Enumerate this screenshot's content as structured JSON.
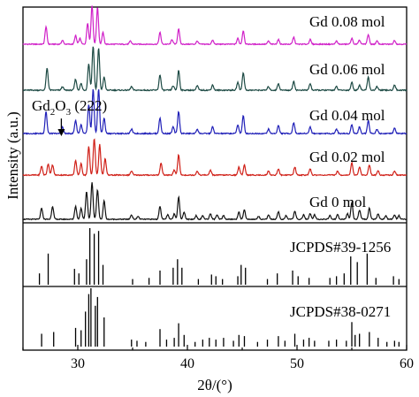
{
  "chart_data": {
    "type": "line",
    "xlabel": "2θ/(°)",
    "ylabel": "Intensity (a.u.)",
    "xlim": [
      25,
      60
    ],
    "xticks": [
      30,
      40,
      50,
      60
    ],
    "xtick_labels": [
      "30",
      "40",
      "50",
      "60"
    ],
    "grid": false,
    "annotation": {
      "text_main": "Gd",
      "text_sub": "2",
      "text_main2": "O",
      "text_sub2": "3",
      "text_tail": " (222)",
      "x": 28.5
    },
    "series": [
      {
        "name": "Gd 0.08 mol",
        "color": "#d020c8",
        "peaks": [
          [
            27.1,
            0.45
          ],
          [
            28.6,
            0.1
          ],
          [
            29.8,
            0.22
          ],
          [
            30.2,
            0.15
          ],
          [
            30.9,
            0.55
          ],
          [
            31.3,
            1.0
          ],
          [
            31.8,
            0.95
          ],
          [
            32.3,
            0.3
          ],
          [
            34.8,
            0.08
          ],
          [
            37.5,
            0.3
          ],
          [
            38.6,
            0.12
          ],
          [
            39.2,
            0.4
          ],
          [
            40.9,
            0.08
          ],
          [
            42.3,
            0.1
          ],
          [
            44.6,
            0.15
          ],
          [
            45.1,
            0.35
          ],
          [
            47.4,
            0.08
          ],
          [
            48.3,
            0.12
          ],
          [
            49.7,
            0.18
          ],
          [
            51.2,
            0.12
          ],
          [
            53.6,
            0.08
          ],
          [
            55.0,
            0.15
          ],
          [
            55.7,
            0.1
          ],
          [
            56.5,
            0.25
          ],
          [
            57.3,
            0.08
          ],
          [
            58.9,
            0.1
          ]
        ]
      },
      {
        "name": "Gd 0.06 mol",
        "color": "#1d4a44",
        "peaks": [
          [
            27.2,
            0.5
          ],
          [
            28.6,
            0.08
          ],
          [
            29.8,
            0.25
          ],
          [
            30.3,
            0.15
          ],
          [
            31.0,
            0.6
          ],
          [
            31.4,
            1.0
          ],
          [
            31.9,
            0.95
          ],
          [
            32.4,
            0.3
          ],
          [
            34.9,
            0.08
          ],
          [
            37.5,
            0.35
          ],
          [
            38.7,
            0.1
          ],
          [
            39.2,
            0.45
          ],
          [
            40.9,
            0.1
          ],
          [
            42.3,
            0.12
          ],
          [
            44.6,
            0.18
          ],
          [
            45.1,
            0.4
          ],
          [
            47.4,
            0.08
          ],
          [
            48.3,
            0.15
          ],
          [
            49.7,
            0.2
          ],
          [
            51.2,
            0.15
          ],
          [
            53.6,
            0.08
          ],
          [
            55.0,
            0.18
          ],
          [
            55.7,
            0.12
          ],
          [
            56.5,
            0.3
          ],
          [
            57.3,
            0.08
          ],
          [
            58.9,
            0.12
          ]
        ]
      },
      {
        "name": "Gd 0.04 mol",
        "color": "#2020b8",
        "peaks": [
          [
            27.1,
            0.5
          ],
          [
            28.6,
            0.15
          ],
          [
            29.8,
            0.3
          ],
          [
            30.3,
            0.2
          ],
          [
            31.0,
            0.65
          ],
          [
            31.4,
            1.0
          ],
          [
            31.9,
            1.0
          ],
          [
            32.4,
            0.35
          ],
          [
            34.9,
            0.1
          ],
          [
            37.5,
            0.35
          ],
          [
            38.7,
            0.15
          ],
          [
            39.2,
            0.5
          ],
          [
            40.9,
            0.1
          ],
          [
            42.3,
            0.15
          ],
          [
            44.6,
            0.2
          ],
          [
            45.1,
            0.4
          ],
          [
            47.4,
            0.1
          ],
          [
            48.3,
            0.18
          ],
          [
            49.7,
            0.25
          ],
          [
            51.2,
            0.15
          ],
          [
            53.6,
            0.1
          ],
          [
            55.0,
            0.2
          ],
          [
            55.7,
            0.15
          ],
          [
            56.5,
            0.3
          ],
          [
            57.3,
            0.1
          ],
          [
            58.9,
            0.12
          ]
        ]
      },
      {
        "name": "Gd 0.02 mol",
        "color": "#d02018",
        "peaks": [
          [
            26.7,
            0.22
          ],
          [
            27.3,
            0.28
          ],
          [
            27.7,
            0.25
          ],
          [
            29.8,
            0.35
          ],
          [
            30.3,
            0.28
          ],
          [
            31.0,
            0.7
          ],
          [
            31.5,
            0.9
          ],
          [
            32.0,
            0.75
          ],
          [
            32.5,
            0.4
          ],
          [
            34.9,
            0.1
          ],
          [
            37.6,
            0.3
          ],
          [
            38.8,
            0.12
          ],
          [
            39.2,
            0.5
          ],
          [
            40.9,
            0.1
          ],
          [
            42.1,
            0.12
          ],
          [
            44.7,
            0.2
          ],
          [
            45.2,
            0.25
          ],
          [
            47.4,
            0.1
          ],
          [
            48.3,
            0.15
          ],
          [
            49.8,
            0.2
          ],
          [
            51.2,
            0.15
          ],
          [
            53.7,
            0.1
          ],
          [
            55.0,
            0.3
          ],
          [
            55.7,
            0.2
          ],
          [
            56.6,
            0.25
          ],
          [
            57.4,
            0.1
          ],
          [
            58.9,
            0.1
          ]
        ]
      },
      {
        "name": "Gd 0 mol",
        "color": "#111111",
        "peaks": [
          [
            26.7,
            0.3
          ],
          [
            27.7,
            0.35
          ],
          [
            29.8,
            0.35
          ],
          [
            30.3,
            0.3
          ],
          [
            30.8,
            0.75
          ],
          [
            31.3,
            1.0
          ],
          [
            31.8,
            0.8
          ],
          [
            32.4,
            0.5
          ],
          [
            34.9,
            0.12
          ],
          [
            35.5,
            0.08
          ],
          [
            37.5,
            0.35
          ],
          [
            38.2,
            0.12
          ],
          [
            38.8,
            0.15
          ],
          [
            39.2,
            0.6
          ],
          [
            39.7,
            0.2
          ],
          [
            40.8,
            0.1
          ],
          [
            41.4,
            0.1
          ],
          [
            42.1,
            0.15
          ],
          [
            42.7,
            0.12
          ],
          [
            43.3,
            0.1
          ],
          [
            44.7,
            0.2
          ],
          [
            45.2,
            0.25
          ],
          [
            46.5,
            0.08
          ],
          [
            47.4,
            0.12
          ],
          [
            48.3,
            0.2
          ],
          [
            49.0,
            0.1
          ],
          [
            49.8,
            0.22
          ],
          [
            50.6,
            0.12
          ],
          [
            51.2,
            0.15
          ],
          [
            51.6,
            0.12
          ],
          [
            53.0,
            0.1
          ],
          [
            53.7,
            0.12
          ],
          [
            54.6,
            0.15
          ],
          [
            55.0,
            0.45
          ],
          [
            55.7,
            0.25
          ],
          [
            56.6,
            0.3
          ],
          [
            57.4,
            0.15
          ],
          [
            58.1,
            0.1
          ],
          [
            58.9,
            0.12
          ],
          [
            59.3,
            0.1
          ]
        ]
      }
    ],
    "references": [
      {
        "name": "JCPDS#39-1256",
        "color": "#000000",
        "lines": [
          [
            26.5,
            0.2
          ],
          [
            27.3,
            0.55
          ],
          [
            29.7,
            0.28
          ],
          [
            30.1,
            0.2
          ],
          [
            30.8,
            0.45
          ],
          [
            31.1,
            1.0
          ],
          [
            31.5,
            0.9
          ],
          [
            31.9,
            0.95
          ],
          [
            32.3,
            0.35
          ],
          [
            35.0,
            0.1
          ],
          [
            36.5,
            0.12
          ],
          [
            37.5,
            0.25
          ],
          [
            38.7,
            0.3
          ],
          [
            39.1,
            0.45
          ],
          [
            39.5,
            0.3
          ],
          [
            41.0,
            0.1
          ],
          [
            42.2,
            0.18
          ],
          [
            42.6,
            0.15
          ],
          [
            43.2,
            0.1
          ],
          [
            44.6,
            0.15
          ],
          [
            44.9,
            0.35
          ],
          [
            45.3,
            0.3
          ],
          [
            47.3,
            0.1
          ],
          [
            48.2,
            0.2
          ],
          [
            49.6,
            0.25
          ],
          [
            50.1,
            0.15
          ],
          [
            51.1,
            0.12
          ],
          [
            53.0,
            0.12
          ],
          [
            53.6,
            0.15
          ],
          [
            54.3,
            0.2
          ],
          [
            54.9,
            0.5
          ],
          [
            55.5,
            0.4
          ],
          [
            56.4,
            0.55
          ],
          [
            57.2,
            0.12
          ],
          [
            58.8,
            0.15
          ],
          [
            59.3,
            0.1
          ]
        ]
      },
      {
        "name": "JCPDS#38-0271",
        "color": "#000000",
        "lines": [
          [
            26.7,
            0.22
          ],
          [
            27.8,
            0.25
          ],
          [
            29.8,
            0.32
          ],
          [
            30.3,
            0.28
          ],
          [
            30.7,
            0.6
          ],
          [
            31.0,
            0.9
          ],
          [
            31.2,
            1.0
          ],
          [
            31.6,
            0.7
          ],
          [
            31.8,
            0.85
          ],
          [
            32.4,
            0.5
          ],
          [
            34.9,
            0.12
          ],
          [
            35.4,
            0.1
          ],
          [
            36.2,
            0.08
          ],
          [
            37.5,
            0.3
          ],
          [
            38.1,
            0.12
          ],
          [
            38.8,
            0.15
          ],
          [
            39.2,
            0.4
          ],
          [
            39.7,
            0.2
          ],
          [
            40.7,
            0.08
          ],
          [
            41.4,
            0.12
          ],
          [
            42.0,
            0.15
          ],
          [
            42.6,
            0.12
          ],
          [
            43.3,
            0.15
          ],
          [
            44.2,
            0.1
          ],
          [
            44.7,
            0.2
          ],
          [
            45.2,
            0.18
          ],
          [
            46.4,
            0.08
          ],
          [
            47.3,
            0.12
          ],
          [
            48.3,
            0.18
          ],
          [
            48.9,
            0.1
          ],
          [
            49.8,
            0.22
          ],
          [
            50.6,
            0.12
          ],
          [
            51.1,
            0.15
          ],
          [
            51.6,
            0.1
          ],
          [
            52.9,
            0.1
          ],
          [
            53.6,
            0.12
          ],
          [
            54.5,
            0.1
          ],
          [
            55.0,
            0.42
          ],
          [
            55.3,
            0.2
          ],
          [
            55.7,
            0.22
          ],
          [
            56.6,
            0.25
          ],
          [
            57.4,
            0.15
          ],
          [
            58.2,
            0.08
          ],
          [
            58.9,
            0.1
          ],
          [
            59.3,
            0.08
          ]
        ]
      }
    ]
  }
}
